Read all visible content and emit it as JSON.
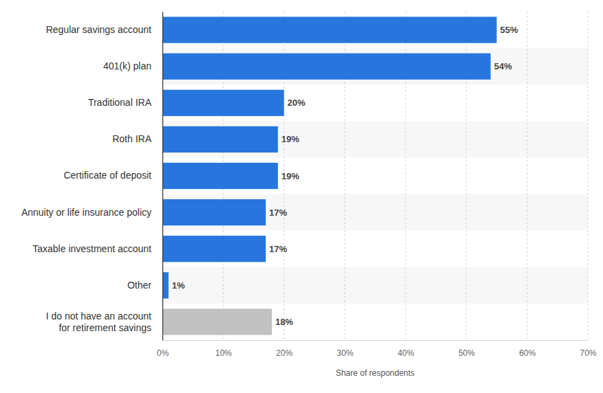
{
  "chart_data": {
    "type": "bar",
    "orientation": "horizontal",
    "categories": [
      "Regular savings account",
      "401(k) plan",
      "Traditional IRA",
      "Roth IRA",
      "Certificate of deposit",
      "Annuity or life insurance policy",
      "Taxable investment account",
      "Other",
      "I do not have an account\nfor retirement savings"
    ],
    "values": [
      55,
      54,
      20,
      19,
      19,
      17,
      17,
      1,
      18
    ],
    "value_labels": [
      "55%",
      "54%",
      "20%",
      "19%",
      "19%",
      "17%",
      "17%",
      "1%",
      "18%"
    ],
    "colors": [
      "#2876dd",
      "#2876dd",
      "#2876dd",
      "#2876dd",
      "#2876dd",
      "#2876dd",
      "#2876dd",
      "#2876dd",
      "#c1c1c1"
    ],
    "xlabel": "Share of respondents",
    "xlim": [
      0,
      70
    ],
    "xticks": [
      {
        "value": 0,
        "label": "0%"
      },
      {
        "value": 10,
        "label": "10%"
      },
      {
        "value": 20,
        "label": "20%"
      },
      {
        "value": 30,
        "label": "30%"
      },
      {
        "value": 40,
        "label": "40%"
      },
      {
        "value": 50,
        "label": "50%"
      },
      {
        "value": 60,
        "label": "60%"
      },
      {
        "value": 70,
        "label": "70%"
      }
    ],
    "grid": true,
    "data_labels": true
  }
}
